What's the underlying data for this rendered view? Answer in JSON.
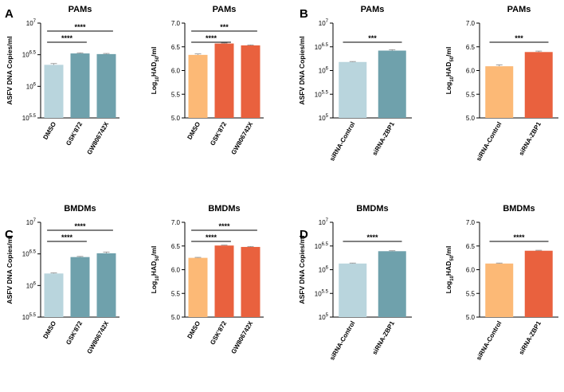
{
  "colors": {
    "light_blue": "#b9d5dd",
    "teal": "#6fa1ac",
    "light_orange": "#fcb976",
    "red_orange": "#e9613e"
  },
  "panel_letters": [
    "A",
    "B",
    "C",
    "D"
  ],
  "chart_data": [
    {
      "type": "bar",
      "title": "PAMs",
      "ylabel": "ASFV DNA Copies/ml",
      "scale": "log10",
      "ylim": [
        5.5,
        7
      ],
      "ytick_labels": [
        [
          "10",
          "5.5"
        ],
        [
          "10",
          "6"
        ],
        [
          "10",
          "6.5"
        ],
        [
          "10",
          "7"
        ]
      ],
      "categories": [
        "DMSO",
        "GSK'872",
        "GW806742X"
      ],
      "values": [
        6.34,
        6.52,
        6.51
      ],
      "errors": [
        0.02,
        0.01,
        0.01
      ],
      "colors": [
        "#b9d5dd",
        "#6fa1ac",
        "#6fa1ac"
      ],
      "significance": [
        {
          "from": 0,
          "to": 1,
          "label": "****"
        },
        {
          "from": 0,
          "to": 2,
          "label": "****"
        }
      ]
    },
    {
      "type": "bar",
      "title": "PAMs",
      "ylabel": [
        "Log",
        "10",
        "HAD",
        "50",
        "/ml"
      ],
      "scale": "linear",
      "ylim": [
        5.0,
        7.0
      ],
      "ytick_labels": [
        "5.0",
        "5.5",
        "6.0",
        "6.5",
        "7.0"
      ],
      "categories": [
        "DMSO",
        "GSK'872",
        "GW806742X"
      ],
      "values": [
        6.33,
        6.57,
        6.53
      ],
      "errors": [
        0.02,
        0.01,
        0.01
      ],
      "colors": [
        "#fcb976",
        "#e9613e",
        "#e9613e"
      ],
      "significance": [
        {
          "from": 0,
          "to": 1,
          "label": "****"
        },
        {
          "from": 0,
          "to": 2,
          "label": "***"
        }
      ]
    },
    {
      "type": "bar",
      "title": "PAMs",
      "ylabel": "ASFV DNA Copies/ml",
      "scale": "log10",
      "ylim": [
        5,
        7
      ],
      "ytick_labels": [
        [
          "10",
          "5"
        ],
        [
          "10",
          "5.5"
        ],
        [
          "10",
          "6"
        ],
        [
          "10",
          "6.5"
        ],
        [
          "10",
          "7"
        ]
      ],
      "categories": [
        "siRNA-Control",
        "siRNA-ZBP1"
      ],
      "values": [
        6.18,
        6.42
      ],
      "errors": [
        0.01,
        0.02
      ],
      "colors": [
        "#b9d5dd",
        "#6fa1ac"
      ],
      "significance": [
        {
          "from": 0,
          "to": 1,
          "label": "***"
        }
      ]
    },
    {
      "type": "bar",
      "title": "PAMs",
      "ylabel": [
        "Log",
        "10",
        "HAD",
        "50",
        "/ml"
      ],
      "scale": "linear",
      "ylim": [
        5.0,
        7.0
      ],
      "ytick_labels": [
        "5.0",
        "5.5",
        "6.0",
        "6.5",
        "7.0"
      ],
      "categories": [
        "siRNA-Control",
        "siRNA-ZBP1"
      ],
      "values": [
        6.09,
        6.39
      ],
      "errors": [
        0.03,
        0.02
      ],
      "colors": [
        "#fcb976",
        "#e9613e"
      ],
      "significance": [
        {
          "from": 0,
          "to": 1,
          "label": "***"
        }
      ]
    },
    {
      "type": "bar",
      "title": "BMDMs",
      "ylabel": "ASFV DNA Copies/ml",
      "scale": "log10",
      "ylim": [
        5.5,
        7
      ],
      "ytick_labels": [
        [
          "10",
          "5.5"
        ],
        [
          "10",
          "6"
        ],
        [
          "10",
          "6.5"
        ],
        [
          "10",
          "7"
        ]
      ],
      "categories": [
        "DMSO",
        "GSK'872",
        "GW806742X"
      ],
      "values": [
        6.19,
        6.45,
        6.51
      ],
      "errors": [
        0.01,
        0.01,
        0.02
      ],
      "colors": [
        "#b9d5dd",
        "#6fa1ac",
        "#6fa1ac"
      ],
      "significance": [
        {
          "from": 0,
          "to": 1,
          "label": "****"
        },
        {
          "from": 0,
          "to": 2,
          "label": "****"
        }
      ]
    },
    {
      "type": "bar",
      "title": "BMDMs",
      "ylabel": [
        "Log",
        "10",
        "HAD",
        "50",
        "/ml"
      ],
      "scale": "linear",
      "ylim": [
        5.0,
        7.0
      ],
      "ytick_labels": [
        "5.0",
        "5.5",
        "6.0",
        "6.5",
        "7.0"
      ],
      "categories": [
        "DMSO",
        "GSK'872",
        "GW806742X"
      ],
      "values": [
        6.25,
        6.51,
        6.48
      ],
      "errors": [
        0.01,
        0.01,
        0.01
      ],
      "colors": [
        "#fcb976",
        "#e9613e",
        "#e9613e"
      ],
      "significance": [
        {
          "from": 0,
          "to": 1,
          "label": "****"
        },
        {
          "from": 0,
          "to": 2,
          "label": "****"
        }
      ]
    },
    {
      "type": "bar",
      "title": "BMDMs",
      "ylabel": "ASFV DNA Copies/ml",
      "scale": "log10",
      "ylim": [
        5,
        7
      ],
      "ytick_labels": [
        [
          "10",
          "5"
        ],
        [
          "10",
          "5.5"
        ],
        [
          "10",
          "6"
        ],
        [
          "10",
          "6.5"
        ],
        [
          "10",
          "7"
        ]
      ],
      "categories": [
        "siRNA-Control",
        "siRNA-ZBP1"
      ],
      "values": [
        6.13,
        6.39
      ],
      "errors": [
        0.01,
        0.01
      ],
      "colors": [
        "#b9d5dd",
        "#6fa1ac"
      ],
      "significance": [
        {
          "from": 0,
          "to": 1,
          "label": "****"
        }
      ]
    },
    {
      "type": "bar",
      "title": "BMDMs",
      "ylabel": [
        "Log",
        "10",
        "HAD",
        "50",
        "/ml"
      ],
      "scale": "linear",
      "ylim": [
        5.0,
        7.0
      ],
      "ytick_labels": [
        "5.0",
        "5.5",
        "6.0",
        "6.5",
        "7.0"
      ],
      "categories": [
        "siRNA-Control",
        "siRNA-ZBP1"
      ],
      "values": [
        6.13,
        6.4
      ],
      "errors": [
        0.01,
        0.01
      ],
      "colors": [
        "#fcb976",
        "#e9613e"
      ],
      "significance": [
        {
          "from": 0,
          "to": 1,
          "label": "****"
        }
      ]
    }
  ]
}
